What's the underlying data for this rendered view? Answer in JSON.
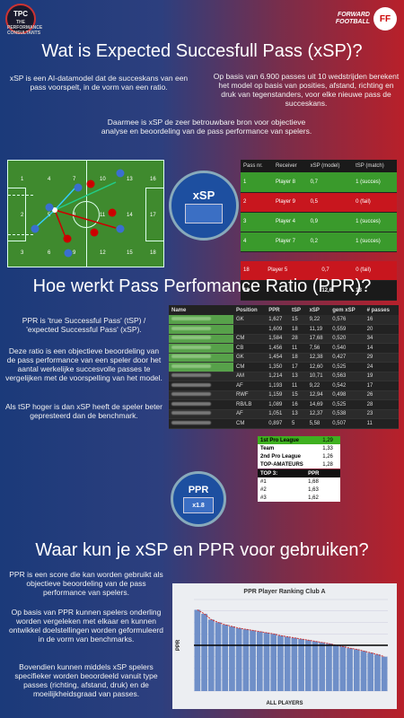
{
  "header": {
    "tpc_main": "TPC",
    "tpc_sub": "THE PERFORMANCE CONSULTANTS",
    "ff_line1": "FORWARD",
    "ff_line2": "FOOTBALL",
    "ff_logo": "FF"
  },
  "section1": {
    "title": "Wat is Expected Succesfull Pass (xSP)?",
    "left_text": "xSP is een AI-datamodel dat de succeskans van een pass voorspelt, in de vorm van een ratio.",
    "right_text": "Op basis van 6.900 passes uit 10 wedstrijden berekent het model op basis van posities, afstand, richting en druk van tegenstanders, voor elke nieuwe pass de succeskans.",
    "center_text": "Daarmee is xSP de zeer betrouwbare bron voor objectieve analyse en beoordeling van de pass performance van spelers.",
    "badge": "xSP"
  },
  "pitch": {
    "zones": [
      "1",
      "4",
      "7",
      "10",
      "13",
      "16",
      "2",
      "5",
      "8",
      "11",
      "14",
      "17",
      "3",
      "6",
      "9",
      "12",
      "15",
      "18"
    ]
  },
  "pass_table": {
    "headers": [
      "Pass nr.",
      "Receiver",
      "xSP (model)",
      "tSP (match)"
    ],
    "rows": [
      {
        "nr": "1",
        "receiver": "Player 8",
        "xsp": "0,7",
        "tsp": "1 (succes)",
        "ok": true
      },
      {
        "nr": "2",
        "receiver": "Player 9",
        "xsp": "0,5",
        "tsp": "0 (fail)",
        "ok": false
      },
      {
        "nr": "3",
        "receiver": "Player 4",
        "xsp": "0,9",
        "tsp": "1 (succes)",
        "ok": true
      },
      {
        "nr": "4",
        "receiver": "Player 7",
        "xsp": "0,2",
        "tsp": "1 (succes)",
        "ok": true
      }
    ],
    "last_row": {
      "nr": "18",
      "receiver": "Player 5",
      "xsp": "0,7",
      "tsp": "0 (fail)"
    },
    "total_row": {
      "nr": "18",
      "xsp": "12,6",
      "tsp": "13"
    }
  },
  "section2": {
    "title": "Hoe werkt Pass Perfomance Ratio (PPR)?",
    "p1": "PPR is 'true Successful Pass' (tSP) / 'expected Successful Pass' (xSP).",
    "p2": "Deze ratio is een objectieve beoordeling van de pass performance van een speler door het aantal werkelijke succesvolle passes te vergelijken met de voorspelling van het model.",
    "p3": "Als tSP hoger is dan xSP heeft de speler beter gepresteerd dan de benchmark.",
    "badge": "PPR",
    "badge_sub": "x1.8"
  },
  "ppr_table": {
    "headers": [
      "Name",
      "Position",
      "PPR",
      "tSP",
      "xSP",
      "gem xSP",
      "# passes"
    ],
    "rows": [
      {
        "pos": "GK",
        "ppr": "1,627",
        "tsp": "15",
        "xsp": "9,22",
        "gem": "0,576",
        "n": "16",
        "hl": true
      },
      {
        "pos": "",
        "ppr": "1,609",
        "tsp": "18",
        "xsp": "11,19",
        "gem": "0,559",
        "n": "20",
        "hl": true
      },
      {
        "pos": "CM",
        "ppr": "1,584",
        "tsp": "28",
        "xsp": "17,68",
        "gem": "0,520",
        "n": "34",
        "hl": true
      },
      {
        "pos": "CB",
        "ppr": "1,456",
        "tsp": "11",
        "xsp": "7,56",
        "gem": "0,540",
        "n": "14",
        "hl": true
      },
      {
        "pos": "GK",
        "ppr": "1,454",
        "tsp": "18",
        "xsp": "12,38",
        "gem": "0,427",
        "n": "29",
        "hl": true
      },
      {
        "pos": "CM",
        "ppr": "1,350",
        "tsp": "17",
        "xsp": "12,60",
        "gem": "0,525",
        "n": "24",
        "hl": true
      },
      {
        "pos": "AM",
        "ppr": "1,214",
        "tsp": "13",
        "xsp": "10,71",
        "gem": "0,563",
        "n": "19",
        "hl": false
      },
      {
        "pos": "AF",
        "ppr": "1,193",
        "tsp": "11",
        "xsp": "9,22",
        "gem": "0,542",
        "n": "17",
        "hl": false
      },
      {
        "pos": "RWF",
        "ppr": "1,159",
        "tsp": "15",
        "xsp": "12,94",
        "gem": "0,498",
        "n": "26",
        "hl": false
      },
      {
        "pos": "RB/LB",
        "ppr": "1,089",
        "tsp": "16",
        "xsp": "14,69",
        "gem": "0,525",
        "n": "28",
        "hl": false
      },
      {
        "pos": "AF",
        "ppr": "1,051",
        "tsp": "13",
        "xsp": "12,37",
        "gem": "0,538",
        "n": "23",
        "hl": false
      },
      {
        "pos": "CM",
        "ppr": "0,897",
        "tsp": "5",
        "xsp": "5,58",
        "gem": "0,507",
        "n": "11",
        "hl": false
      }
    ]
  },
  "levels": [
    {
      "label": "1st Pro League",
      "value": "1,29"
    },
    {
      "label": "Team",
      "value": "1,33"
    },
    {
      "label": "2nd Pro League",
      "value": "1,26"
    },
    {
      "label": "TOP-AMATEURS",
      "value": "1,28"
    }
  ],
  "top3": {
    "header_left": "TOP 3:",
    "header_right": "PPR",
    "rows": [
      {
        "k": "#1",
        "v": "1,68"
      },
      {
        "k": "#2",
        "v": "1,63"
      },
      {
        "k": "#3",
        "v": "1,62"
      }
    ]
  },
  "section3": {
    "title": "Waar kun je xSP en PPR voor gebruiken?",
    "p1": "PPR is een score die kan worden gebruikt als objectieve beoordeling van de pass performance van spelers.",
    "p2": "Op basis van PPR kunnen spelers onderling worden vergeleken met elkaar en kunnen ontwikkel doelstellingen worden geformuleerd in de vorm van benchmarks.",
    "p3": "Bovendien kunnen middels xSP spelers specifieker worden beoordeeld vanuit type passes (richting, afstand, druk) en de moeilijkheidsgraad van passes."
  },
  "chart_data": {
    "type": "bar",
    "title": "PPR Player Ranking Club A",
    "xlabel": "ALL PLAYERS",
    "ylabel": "PPR",
    "values": [
      1.62,
      1.55,
      1.45,
      1.4,
      1.36,
      1.33,
      1.3,
      1.28,
      1.26,
      1.24,
      1.22,
      1.2,
      1.17,
      1.15,
      1.13,
      1.11,
      1.09,
      1.07,
      1.05,
      1.03,
      1.0,
      0.98,
      0.95,
      0.93,
      0.9,
      0.87,
      0.84,
      0.8
    ],
    "reference_line": 1.0,
    "ylim": [
      0.2,
      1.8
    ]
  }
}
